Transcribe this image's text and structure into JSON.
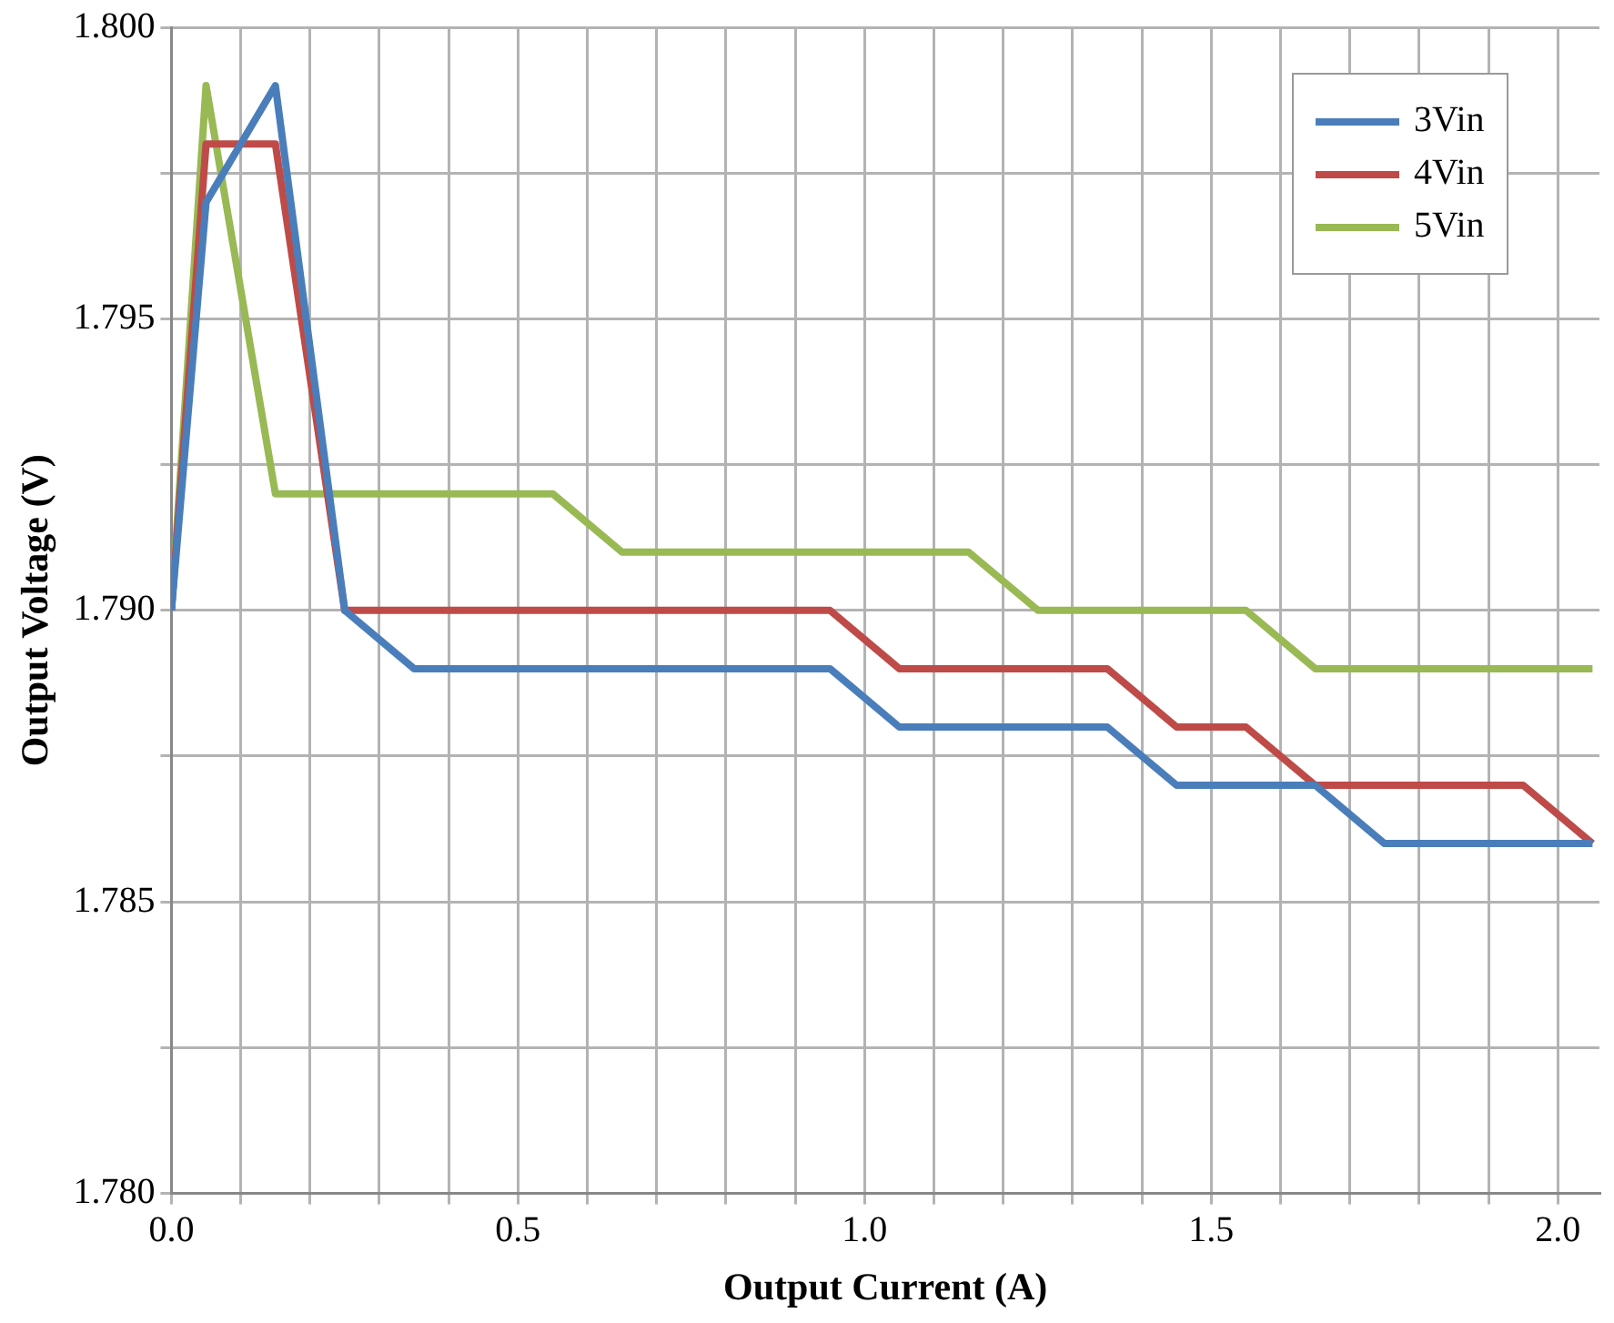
{
  "chart_data": {
    "type": "line",
    "xlabel": "Output Current (A)",
    "ylabel": "Output Voltage (V)",
    "x": [
      0,
      0.05,
      0.15,
      0.25,
      0.35,
      0.45,
      0.55,
      0.65,
      0.75,
      0.85,
      0.95,
      1.05,
      1.15,
      1.25,
      1.35,
      1.45,
      1.55,
      1.65,
      1.75,
      1.85,
      1.95,
      2.05
    ],
    "series": [
      {
        "name": "3Vin",
        "color": "#4a7ebb",
        "values": [
          1.79,
          1.797,
          1.799,
          1.79,
          1.789,
          1.789,
          1.789,
          1.789,
          1.789,
          1.789,
          1.789,
          1.788,
          1.788,
          1.788,
          1.788,
          1.787,
          1.787,
          1.787,
          1.786,
          1.786,
          1.786,
          1.786
        ]
      },
      {
        "name": "4Vin",
        "color": "#be4b48",
        "values": [
          1.79,
          1.798,
          1.798,
          1.79,
          1.79,
          1.79,
          1.79,
          1.79,
          1.79,
          1.79,
          1.79,
          1.789,
          1.789,
          1.789,
          1.789,
          1.788,
          1.788,
          1.787,
          1.787,
          1.787,
          1.787,
          1.786
        ]
      },
      {
        "name": "5Vin",
        "color": "#98b954",
        "values": [
          1.79,
          1.799,
          1.792,
          1.792,
          1.792,
          1.792,
          1.792,
          1.791,
          1.791,
          1.791,
          1.791,
          1.791,
          1.791,
          1.79,
          1.79,
          1.79,
          1.79,
          1.789,
          1.789,
          1.789,
          1.789,
          1.789
        ]
      }
    ],
    "xlim": [
      0,
      2.06
    ],
    "xticks": [
      {
        "value": 0,
        "label": "0.0"
      },
      {
        "value": 0.1,
        "label": null
      },
      {
        "value": 0.2,
        "label": null
      },
      {
        "value": 0.3,
        "label": null
      },
      {
        "value": 0.4,
        "label": null
      },
      {
        "value": 0.5,
        "label": "0.5"
      },
      {
        "value": 0.6,
        "label": null
      },
      {
        "value": 0.7,
        "label": null
      },
      {
        "value": 0.8,
        "label": null
      },
      {
        "value": 0.9,
        "label": null
      },
      {
        "value": 1.0,
        "label": "1.0"
      },
      {
        "value": 1.1,
        "label": null
      },
      {
        "value": 1.2,
        "label": null
      },
      {
        "value": 1.3,
        "label": null
      },
      {
        "value": 1.4,
        "label": null
      },
      {
        "value": 1.5,
        "label": "1.5"
      },
      {
        "value": 1.6,
        "label": null
      },
      {
        "value": 1.7,
        "label": null
      },
      {
        "value": 1.8,
        "label": null
      },
      {
        "value": 1.9,
        "label": null
      },
      {
        "value": 2.0,
        "label": "2.0"
      }
    ],
    "ylim": [
      1.78,
      1.8
    ],
    "yticks": [
      {
        "value": 1.78,
        "label": "1.780"
      },
      {
        "value": 1.7825,
        "label": null
      },
      {
        "value": 1.785,
        "label": "1.785"
      },
      {
        "value": 1.7875,
        "label": null
      },
      {
        "value": 1.79,
        "label": "1.790"
      },
      {
        "value": 1.7925,
        "label": null
      },
      {
        "value": 1.795,
        "label": "1.795"
      },
      {
        "value": 1.7975,
        "label": null
      },
      {
        "value": 1.8,
        "label": "1.800"
      }
    ],
    "grid": true,
    "legend": "top right",
    "marker": "none",
    "line_style": "solid"
  }
}
